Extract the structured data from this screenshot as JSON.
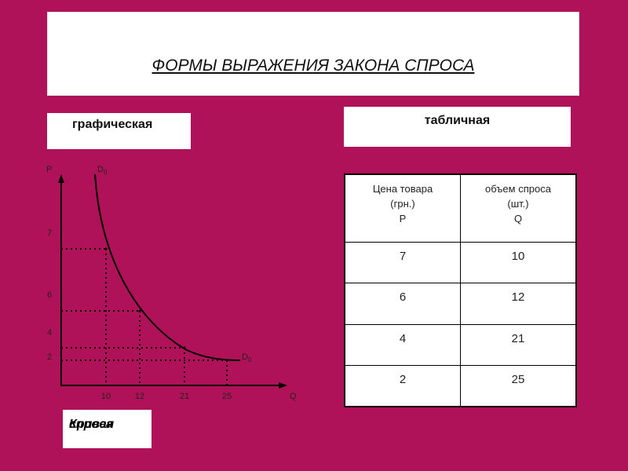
{
  "title": "ФОРМЫ ВЫРАЖЕНИЯ ЗАКОНА СПРОСА",
  "graph_label": "графическая",
  "table_label": "табличная",
  "caption": {
    "line1": "Кривая",
    "line2": "спроса"
  },
  "chart_data": {
    "type": "line",
    "title": "",
    "xlabel": "Q",
    "ylabel": "P",
    "curve_label_top": "D",
    "curve_label_bottom": "D",
    "curve_label_subscript": "0",
    "x_ticks": [
      "10",
      "12",
      "21",
      "25"
    ],
    "y_ticks": [
      "7",
      "6",
      "4",
      "2"
    ],
    "series": [
      {
        "x": [
          10,
          12,
          21,
          25
        ],
        "y": [
          7,
          6,
          4,
          2
        ]
      }
    ],
    "grid": false,
    "guide_lines": "dotted"
  },
  "table": {
    "headers": [
      {
        "l1": "Цена товара",
        "l2": "(грн.)",
        "l3": "P"
      },
      {
        "l1": "объем спроса",
        "l2": "(шт.)",
        "l3": "Q"
      }
    ],
    "rows": [
      [
        "7",
        "10"
      ],
      [
        "6",
        "12"
      ],
      [
        "4",
        "21"
      ],
      [
        "2",
        "25"
      ]
    ]
  },
  "colors": {
    "background": "#B0125A",
    "panel": "#FFFFFF",
    "text": "#111111"
  }
}
